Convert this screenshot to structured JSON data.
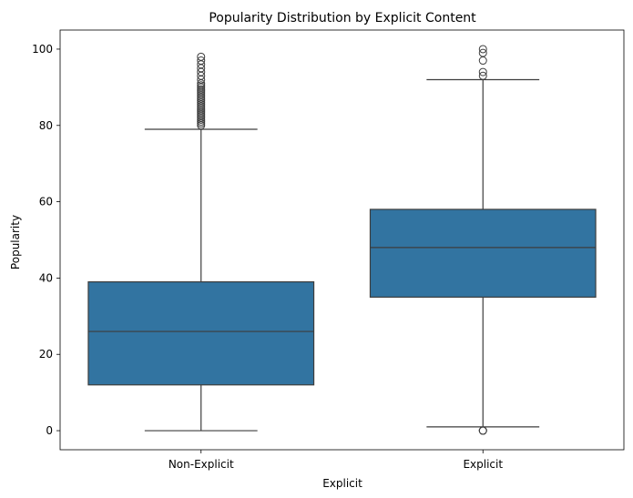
{
  "chart_data": {
    "type": "box",
    "title": "Popularity Distribution by Explicit Content",
    "xlabel": "Explicit",
    "ylabel": "Popularity",
    "ylim": [
      -5,
      105
    ],
    "yticks": [
      0,
      20,
      40,
      60,
      80,
      100
    ],
    "grid": false,
    "box_color": "#3274a1",
    "line_color": "#3d3d3d",
    "categories": [
      "Non-Explicit",
      "Explicit"
    ],
    "boxes": [
      {
        "category": "Non-Explicit",
        "whisker_low": 0,
        "q1": 12,
        "median": 26,
        "q3": 39,
        "whisker_high": 79,
        "outliers": [
          80,
          80.5,
          81,
          81.5,
          82,
          82.5,
          83,
          83.5,
          84,
          84.5,
          85,
          85.5,
          86,
          86.5,
          87,
          87.5,
          88,
          88.5,
          89,
          89.5,
          90,
          90.5,
          91,
          92,
          93,
          94,
          95,
          96,
          97,
          98
        ]
      },
      {
        "category": "Explicit",
        "whisker_low": 1,
        "q1": 35,
        "median": 48,
        "q3": 58,
        "whisker_high": 92,
        "outliers": [
          0,
          0,
          0,
          93,
          94,
          97,
          99,
          100
        ]
      }
    ]
  }
}
